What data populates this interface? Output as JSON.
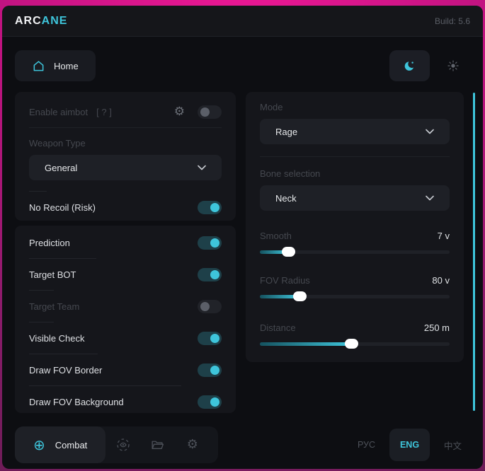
{
  "colors": {
    "accent": "#3EC5DB",
    "backdrop": "#D8148C",
    "windowBg": "#0D0E12",
    "cardBg": "#15161B",
    "controlBg": "#1E2026",
    "dimText": "#45484F",
    "toggleOnTrack": "#1E4049"
  },
  "header": {
    "brand_primary": "ARC",
    "brand_accent": "ANE",
    "build": "Build: 5.6"
  },
  "nav": {
    "home_label": "Home"
  },
  "aimbot_card": {
    "enable_label": "Enable aimbot",
    "enable_hint": "[ ? ]",
    "gear_glyph": "⚙",
    "enable_on": false,
    "weapon_type_label": "Weapon Type",
    "weapon_type_value": "General",
    "no_recoil": {
      "label": "No Recoil (Risk)",
      "on": true
    }
  },
  "toggle_card": {
    "items": [
      {
        "label": "Prediction",
        "on": true
      },
      {
        "label": "Target BOT",
        "on": true
      },
      {
        "label": "Target Team",
        "on": false
      },
      {
        "label": "Visible Check",
        "on": true
      },
      {
        "label": "Draw FOV Border",
        "on": true
      },
      {
        "label": "Draw FOV Background",
        "on": true
      }
    ]
  },
  "settings_card": {
    "mode_label": "Mode",
    "mode_value": "Rage",
    "bone_label": "Bone selection",
    "bone_value": "Neck",
    "sliders": [
      {
        "label": "Smooth",
        "value": "7 v",
        "percent": 15
      },
      {
        "label": "FOV Radius",
        "value": "80 v",
        "percent": 21
      },
      {
        "label": "Distance",
        "value": "250 m",
        "percent": 48
      }
    ]
  },
  "footer": {
    "combat_label": "Combat",
    "crosshair_glyph": "⊕",
    "gear_glyph": "⚙",
    "languages": [
      {
        "label": "РУС",
        "active": false
      },
      {
        "label": "ENG",
        "active": true
      },
      {
        "label": "中文",
        "active": false
      }
    ]
  }
}
